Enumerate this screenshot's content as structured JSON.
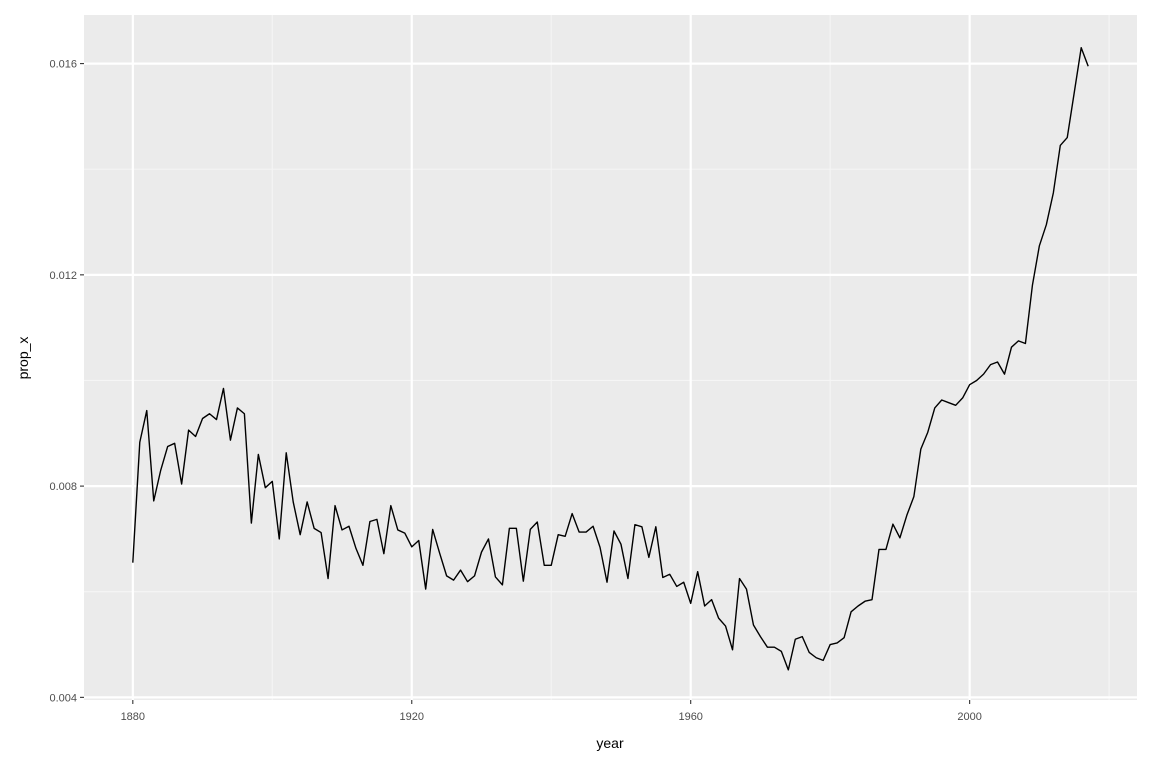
{
  "chart_data": {
    "type": "line",
    "title": "",
    "xlabel": "year",
    "ylabel": "prop_x",
    "xlim": [
      1873,
      2024
    ],
    "ylim": [
      0.00395,
      0.01692
    ],
    "x_ticks": [
      1880,
      1920,
      1960,
      2000
    ],
    "x_tick_labels": [
      "1880",
      "1920",
      "1960",
      "2000"
    ],
    "y_ticks": [
      0.004,
      0.008,
      0.012,
      0.016
    ],
    "y_tick_labels": [
      "0.004",
      "0.008",
      "0.012",
      "0.016"
    ],
    "grid": true,
    "legend": "none",
    "colors": {
      "panel_background": "#ebebeb",
      "grid_major": "#ffffff",
      "grid_minor": "#f5f5f5",
      "line": "#000000",
      "tick": "#333333"
    },
    "series": [
      {
        "x": [
          1880,
          1881,
          1882,
          1883,
          1884,
          1885,
          1886,
          1887,
          1888,
          1889,
          1890,
          1891,
          1892,
          1893,
          1894,
          1895,
          1896,
          1897,
          1898,
          1899,
          1900,
          1901,
          1902,
          1903,
          1904,
          1905,
          1906,
          1907,
          1908,
          1909,
          1910,
          1911,
          1912,
          1913,
          1914,
          1915,
          1916,
          1917,
          1918,
          1919,
          1920,
          1921,
          1922,
          1923,
          1924,
          1925,
          1926,
          1927,
          1928,
          1929,
          1930,
          1931,
          1932,
          1933,
          1934,
          1935,
          1936,
          1937,
          1938,
          1939,
          1940,
          1941,
          1942,
          1943,
          1944,
          1945,
          1946,
          1947,
          1948,
          1949,
          1950,
          1951,
          1952,
          1953,
          1954,
          1955,
          1956,
          1957,
          1958,
          1959,
          1960,
          1961,
          1962,
          1963,
          1964,
          1965,
          1966,
          1967,
          1968,
          1969,
          1970,
          1971,
          1972,
          1973,
          1974,
          1975,
          1976,
          1977,
          1978,
          1979,
          1980,
          1981,
          1982,
          1983,
          1984,
          1985,
          1986,
          1987,
          1988,
          1989,
          1990,
          1991,
          1992,
          1993,
          1994,
          1995,
          1996,
          1997,
          1998,
          1999,
          2000,
          2001,
          2002,
          2003,
          2004,
          2005,
          2006,
          2007,
          2008,
          2009,
          2010,
          2011,
          2012,
          2013,
          2014,
          2015,
          2016,
          2017
        ],
        "values": [
          0.00655,
          0.00883,
          0.00943,
          0.00772,
          0.0083,
          0.00875,
          0.00881,
          0.00804,
          0.00906,
          0.00894,
          0.00928,
          0.00937,
          0.00926,
          0.00985,
          0.00887,
          0.00948,
          0.00937,
          0.0073,
          0.0086,
          0.00797,
          0.00809,
          0.007,
          0.00863,
          0.0077,
          0.00708,
          0.0077,
          0.0072,
          0.00712,
          0.00625,
          0.00763,
          0.00717,
          0.00724,
          0.00682,
          0.0065,
          0.00733,
          0.00737,
          0.00672,
          0.00763,
          0.00717,
          0.00711,
          0.00685,
          0.00697,
          0.00605,
          0.00718,
          0.00673,
          0.0063,
          0.00622,
          0.00641,
          0.00619,
          0.0063,
          0.00675,
          0.007,
          0.00628,
          0.00613,
          0.0072,
          0.0072,
          0.0062,
          0.00718,
          0.00732,
          0.0065,
          0.0065,
          0.00708,
          0.00705,
          0.00748,
          0.00713,
          0.00713,
          0.00724,
          0.00684,
          0.00618,
          0.00715,
          0.0069,
          0.00625,
          0.00727,
          0.00723,
          0.00665,
          0.00723,
          0.00627,
          0.00633,
          0.0061,
          0.00618,
          0.00578,
          0.00638,
          0.00573,
          0.00585,
          0.0055,
          0.00535,
          0.0049,
          0.00625,
          0.00605,
          0.00537,
          0.00515,
          0.00495,
          0.00495,
          0.00487,
          0.00452,
          0.0051,
          0.00515,
          0.00485,
          0.00475,
          0.0047,
          0.005,
          0.00503,
          0.00513,
          0.00562,
          0.00573,
          0.00582,
          0.00585,
          0.0068,
          0.0068,
          0.00728,
          0.00702,
          0.00745,
          0.0078,
          0.0087,
          0.00902,
          0.00948,
          0.00963,
          0.00958,
          0.00953,
          0.00967,
          0.00992,
          0.01,
          0.01012,
          0.0103,
          0.01035,
          0.01012,
          0.01063,
          0.01075,
          0.0107,
          0.0118,
          0.01255,
          0.01295,
          0.01355,
          0.01445,
          0.0146,
          0.01545,
          0.0163,
          0.01595
        ]
      }
    ]
  }
}
